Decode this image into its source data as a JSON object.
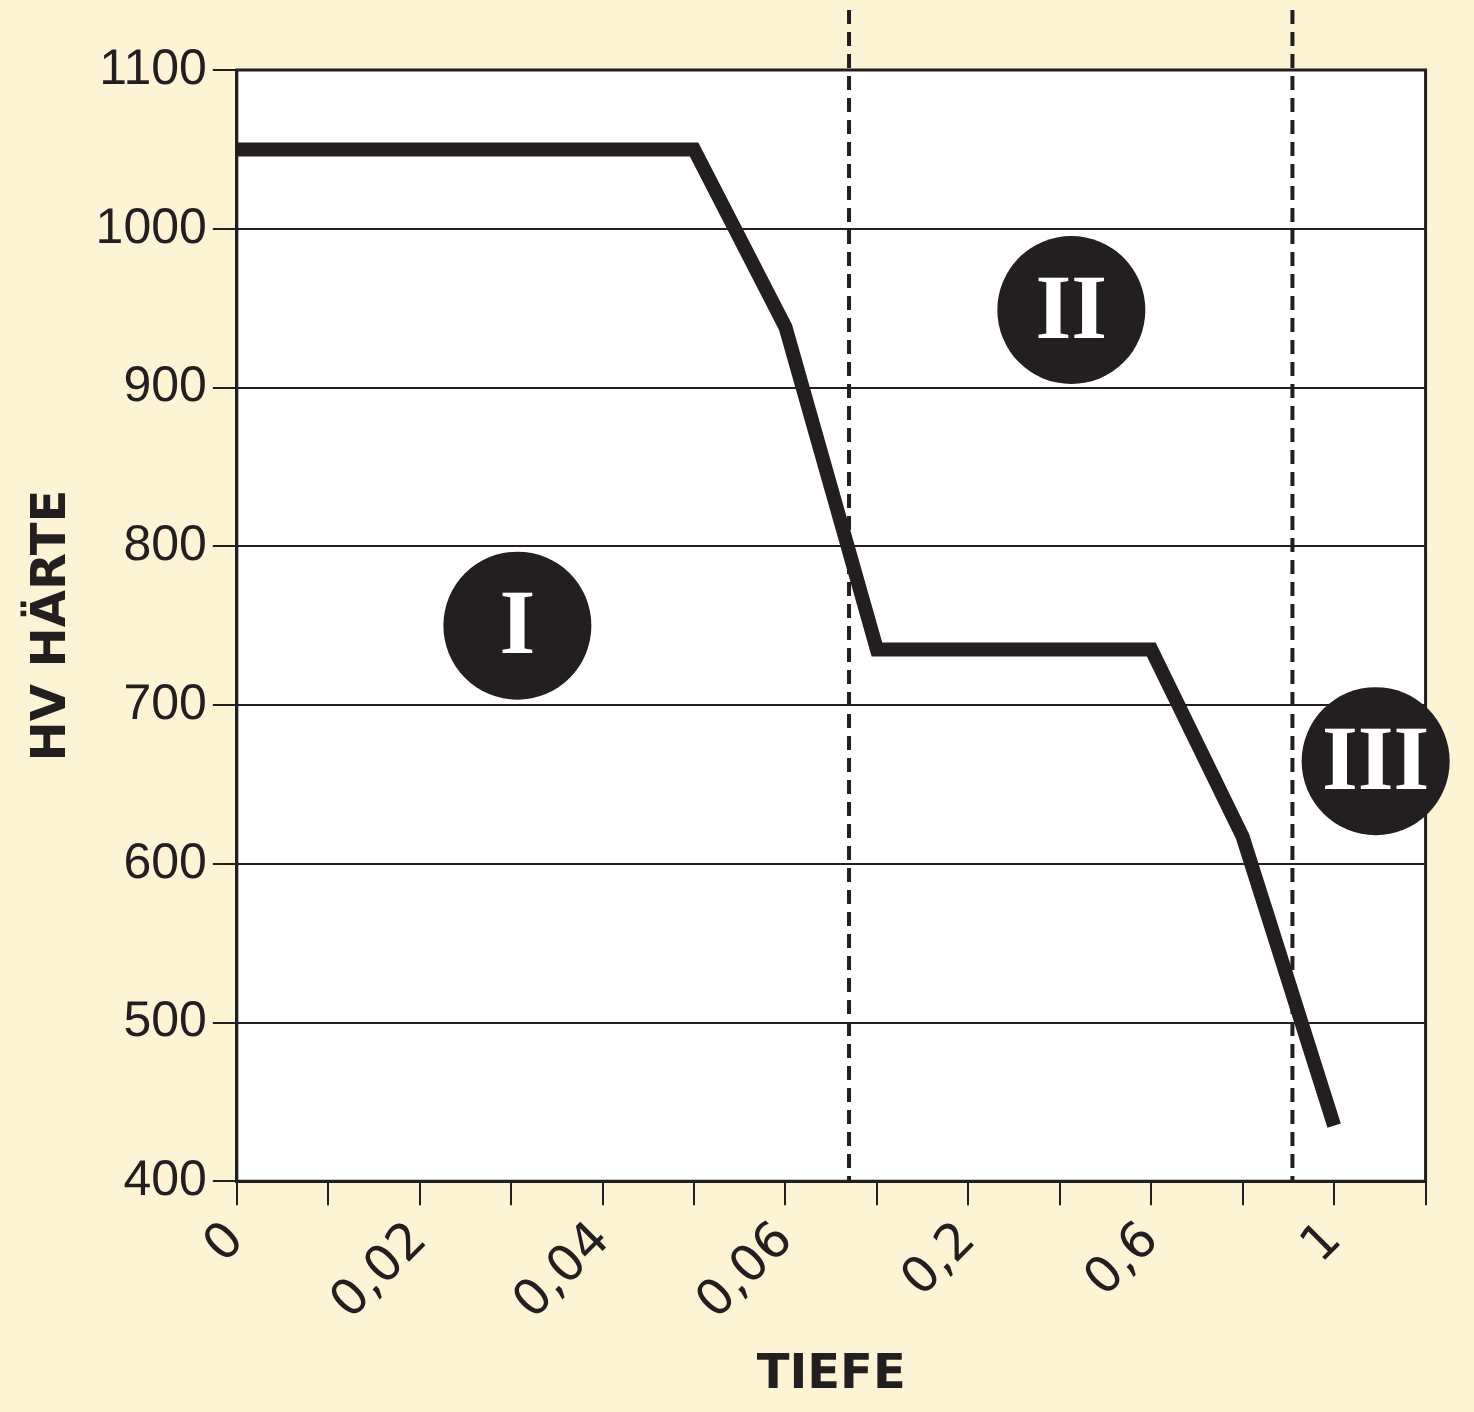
{
  "chart_data": {
    "type": "line",
    "xlabel": "TIEFE",
    "ylabel": "HV HÄRTE",
    "categories": [
      "0",
      null,
      "0,02",
      null,
      "0,04",
      null,
      "0,06",
      null,
      "0,2",
      null,
      "0,6",
      null,
      "1",
      null
    ],
    "series": [
      {
        "color": "#231f20",
        "values": [
          1050,
          1050,
          1050,
          1050,
          1050,
          1050,
          938,
          735,
          735,
          735,
          735,
          617,
          435,
          null
        ]
      }
    ],
    "ylim": [
      400,
      1100
    ],
    "yticks": [
      400,
      500,
      600,
      700,
      800,
      900,
      1000,
      1100
    ],
    "annotations": [
      "I",
      "II",
      "III"
    ],
    "grid": "y",
    "legend": false,
    "marker": "none",
    "line_style": "solid"
  }
}
